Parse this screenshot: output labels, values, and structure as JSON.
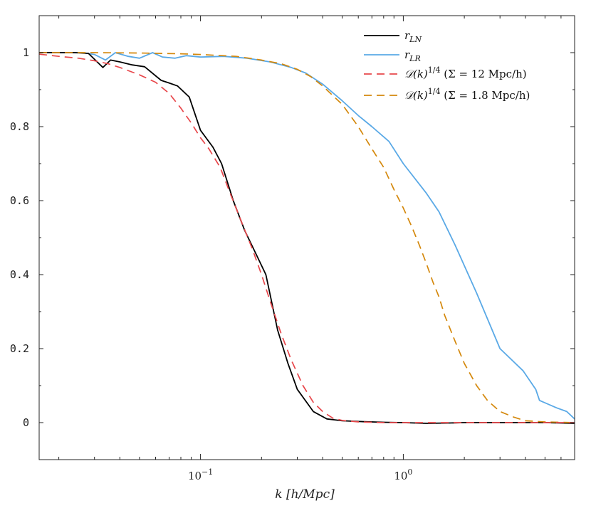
{
  "chart_data": {
    "type": "line",
    "title": "",
    "xscale": "log",
    "xlim": [
      0.016,
      7.0
    ],
    "ylim": [
      -0.1,
      1.1
    ],
    "xlabel": "k [h/Mpc]",
    "ylabel": "",
    "grid": false,
    "legend_position": "top-right",
    "yticks": [
      0,
      0.2,
      0.4,
      0.6,
      0.8,
      1
    ],
    "ytick_labels": [
      "0",
      "0.2",
      "0.4",
      "0.6",
      "0.8",
      "1"
    ],
    "xticks": [
      0.1,
      1.0
    ],
    "xtick_labels": [
      {
        "base": "10",
        "exp": "−1"
      },
      {
        "base": "10",
        "exp": "0"
      }
    ],
    "series": [
      {
        "name": "r_LN",
        "legend_label": "r",
        "legend_sub": "LN",
        "color": "#000000",
        "style": "solid",
        "x": [
          0.016,
          0.02,
          0.024,
          0.028,
          0.033,
          0.036,
          0.04,
          0.046,
          0.053,
          0.064,
          0.07,
          0.077,
          0.088,
          0.1,
          0.115,
          0.127,
          0.145,
          0.165,
          0.19,
          0.21,
          0.24,
          0.27,
          0.3,
          0.36,
          0.42,
          0.5,
          0.6,
          0.8,
          1.0,
          1.3,
          1.7,
          2.0,
          3.0,
          4.0,
          5.0,
          7.0
        ],
        "y": [
          1.0,
          1.0,
          1.0,
          0.998,
          0.96,
          0.98,
          0.975,
          0.967,
          0.962,
          0.925,
          0.918,
          0.91,
          0.88,
          0.79,
          0.745,
          0.7,
          0.6,
          0.52,
          0.45,
          0.4,
          0.25,
          0.16,
          0.09,
          0.03,
          0.01,
          0.005,
          0.003,
          0.001,
          0.0,
          -0.002,
          -0.001,
          0.0,
          0.0,
          0.0,
          0.0,
          -0.002
        ]
      },
      {
        "name": "r_LR",
        "legend_label": "r",
        "legend_sub": "LR",
        "color": "#5aa9e6",
        "style": "solid",
        "x": [
          0.016,
          0.02,
          0.026,
          0.03,
          0.034,
          0.038,
          0.044,
          0.05,
          0.058,
          0.065,
          0.075,
          0.085,
          0.1,
          0.13,
          0.17,
          0.22,
          0.28,
          0.33,
          0.4,
          0.5,
          0.6,
          0.7,
          0.85,
          1.0,
          1.3,
          1.5,
          1.8,
          2.3,
          3.0,
          3.9,
          4.5,
          4.7,
          5.7,
          6.4,
          7.0
        ],
        "y": [
          1.0,
          1.0,
          1.0,
          0.995,
          0.98,
          1.0,
          0.99,
          0.985,
          1.0,
          0.988,
          0.985,
          0.992,
          0.988,
          0.99,
          0.985,
          0.975,
          0.96,
          0.945,
          0.915,
          0.87,
          0.83,
          0.8,
          0.76,
          0.7,
          0.62,
          0.57,
          0.48,
          0.35,
          0.2,
          0.14,
          0.09,
          0.06,
          0.04,
          0.03,
          0.01
        ]
      },
      {
        "name": "D(k)^1/4 (Σ = 12 Mpc/h)",
        "legend_label": "𝒟(k)",
        "legend_sup": "1/4",
        "legend_tail": " (Σ = 12 Mpc/h)",
        "color": "#e8474b",
        "style": "dashed",
        "x": [
          0.016,
          0.02,
          0.025,
          0.03,
          0.035,
          0.04,
          0.05,
          0.06,
          0.07,
          0.08,
          0.09,
          0.1,
          0.11,
          0.125,
          0.14,
          0.16,
          0.18,
          0.2,
          0.22,
          0.25,
          0.28,
          0.32,
          0.36,
          0.4,
          0.45,
          0.5,
          0.6,
          0.8,
          1.0,
          1.5,
          2.0,
          4.0,
          7.0
        ],
        "y": [
          0.996,
          0.99,
          0.985,
          0.978,
          0.97,
          0.96,
          0.94,
          0.92,
          0.89,
          0.85,
          0.81,
          0.77,
          0.74,
          0.69,
          0.62,
          0.54,
          0.47,
          0.4,
          0.33,
          0.24,
          0.17,
          0.1,
          0.055,
          0.03,
          0.012,
          0.006,
          0.002,
          0.0,
          0.0,
          0.0,
          0.0,
          0.0,
          0.0
        ]
      },
      {
        "name": "D(k)^1/4 (Σ = 1.8 Mpc/h)",
        "legend_label": "𝒟(k)",
        "legend_sup": "1/4",
        "legend_tail": " (Σ = 1.8 Mpc/h)",
        "color": "#d4880c",
        "style": "dashed",
        "x": [
          0.016,
          0.03,
          0.05,
          0.08,
          0.1,
          0.15,
          0.2,
          0.25,
          0.3,
          0.35,
          0.4,
          0.5,
          0.6,
          0.7,
          0.8,
          0.9,
          1.0,
          1.1,
          1.2,
          1.3,
          1.4,
          1.5,
          1.6,
          1.8,
          2.0,
          2.3,
          2.6,
          3.0,
          3.5,
          4.0,
          5.0,
          7.0
        ],
        "y": [
          1.0,
          1.0,
          0.999,
          0.997,
          0.995,
          0.99,
          0.98,
          0.97,
          0.955,
          0.935,
          0.91,
          0.86,
          0.8,
          0.74,
          0.69,
          0.63,
          0.58,
          0.53,
          0.48,
          0.43,
          0.38,
          0.34,
          0.29,
          0.22,
          0.16,
          0.1,
          0.06,
          0.03,
          0.015,
          0.005,
          0.002,
          0.0
        ]
      }
    ]
  }
}
